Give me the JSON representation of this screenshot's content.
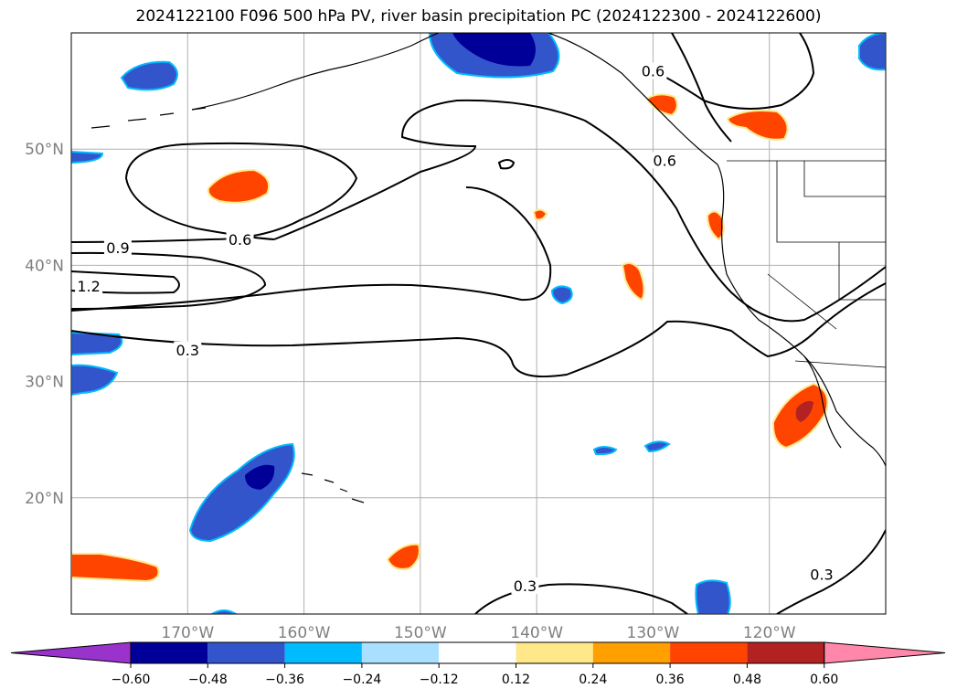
{
  "title": "2024122100 F096 500 hPa PV, river basin precipitation PC (2024122300 - 2024122600)",
  "map": {
    "lon_range": [
      -180,
      -110
    ],
    "lat_range": [
      10,
      60
    ],
    "lat_ticks": [
      "50°N",
      "40°N",
      "30°N",
      "20°N"
    ],
    "lat_values": [
      50,
      40,
      30,
      20
    ],
    "lon_ticks": [
      "170°W",
      "160°W",
      "150°W",
      "140°W",
      "130°W",
      "120°W"
    ],
    "lon_values": [
      -170,
      -160,
      -150,
      -140,
      -130,
      -120
    ],
    "grid": true
  },
  "contour_labels": [
    {
      "text": "0.6",
      "lon": -165.5,
      "lat": 42
    },
    {
      "text": "0.9",
      "lon": -176,
      "lat": 41.3
    },
    {
      "text": "1.2",
      "lon": -178.5,
      "lat": 38
    },
    {
      "text": "0.3",
      "lon": -170,
      "lat": 32.5
    },
    {
      "text": "0.6",
      "lon": -129,
      "lat": 48.8
    },
    {
      "text": "0.6",
      "lon": -130,
      "lat": 56.5
    },
    {
      "text": "0.3",
      "lon": -141,
      "lat": 12.2
    },
    {
      "text": "0.3",
      "lon": -115.5,
      "lat": 13.2
    }
  ],
  "colorbar": {
    "colors": [
      "#9933cc",
      "#000099",
      "#3355cc",
      "#00bbff",
      "#aae0ff",
      "#ffffff",
      "#ffe88a",
      "#ffa000",
      "#ff4400",
      "#b22222",
      "#ff88aa"
    ],
    "tick_labels": [
      "−0.60",
      "−0.48",
      "−0.36",
      "−0.24",
      "−0.12",
      "0.12",
      "0.24",
      "0.36",
      "0.48",
      "0.60"
    ]
  }
}
